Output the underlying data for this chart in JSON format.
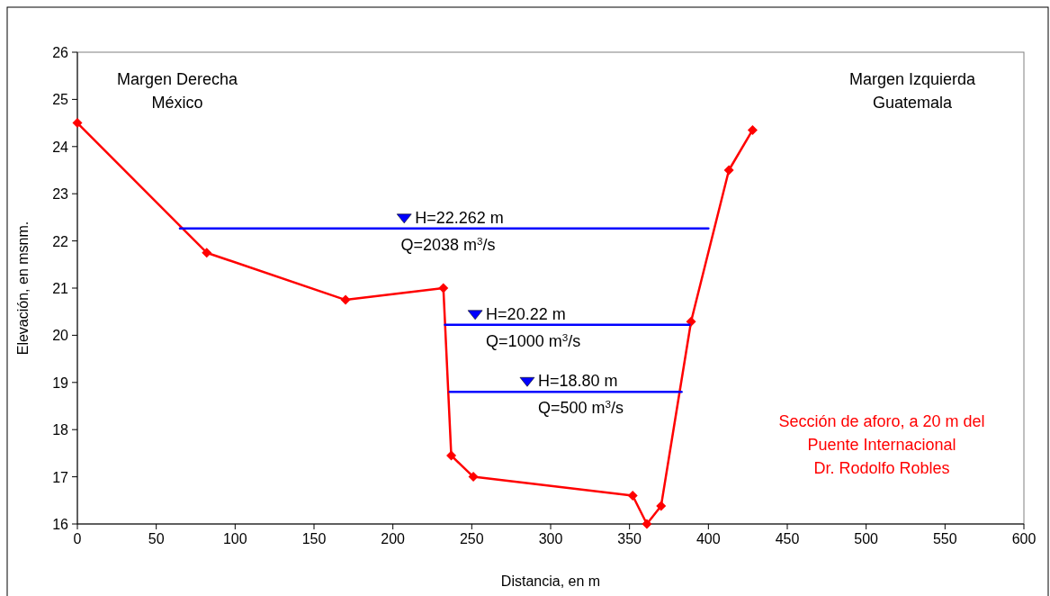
{
  "chart_data": {
    "type": "line",
    "xlabel": "Distancia, en m",
    "ylabel": "Elevación, en msnm.",
    "xlim": [
      0,
      600
    ],
    "xticks": [
      0,
      50,
      100,
      150,
      200,
      250,
      300,
      350,
      400,
      450,
      500,
      550,
      600
    ],
    "ylim": [
      16,
      26
    ],
    "yticks": [
      16,
      17,
      18,
      19,
      20,
      21,
      22,
      23,
      24,
      25,
      26
    ],
    "grid": false,
    "series": [
      {
        "color": "#ff0000",
        "marker": "diamond",
        "x": [
          0,
          82,
          170,
          232,
          237,
          251,
          352,
          361,
          370,
          389,
          413,
          428
        ],
        "values": [
          24.5,
          21.75,
          20.75,
          21.0,
          17.45,
          17.0,
          16.6,
          16.0,
          16.38,
          20.29,
          23.5,
          24.35
        ]
      },
      {
        "color": "#0000ff",
        "marker": "none",
        "x": [
          65,
          400
        ],
        "values": [
          22.262,
          22.262
        ]
      },
      {
        "color": "#0000ff",
        "marker": "none",
        "x": [
          233,
          388
        ],
        "values": [
          20.22,
          20.22
        ]
      },
      {
        "color": "#0000ff",
        "marker": "none",
        "x": [
          236,
          383
        ],
        "values": [
          18.8,
          18.8
        ]
      }
    ],
    "annotations": [
      {
        "text": "H=22.262 m",
        "x": 214,
        "y": 22.262
      },
      {
        "text": "Q=2038 m$^{3}$/s",
        "x": 205,
        "y": 22.262
      },
      {
        "text": "H=20.22 m",
        "x": 259,
        "y": 20.22
      },
      {
        "text": "Q=1000 m$^{3}$/s",
        "x": 259,
        "y": 20.22
      },
      {
        "text": "H=18.80 m",
        "x": 292,
        "y": 18.8
      },
      {
        "text": "Q=500 m$^{3}$/s",
        "x": 292,
        "y": 18.8
      },
      "Margen Derecha\nMéxico",
      "Margen Izquierda\nGuatemala",
      "Sección de aforo, a 20 m del\nPuente Internacional\nDr. Rodolfo Robles"
    ]
  }
}
